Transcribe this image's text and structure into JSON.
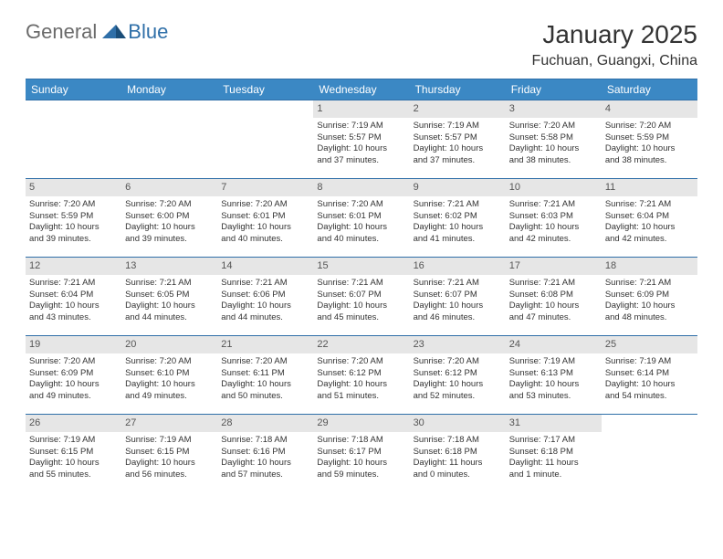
{
  "logo": {
    "part1": "General",
    "part2": "Blue"
  },
  "title": "January 2025",
  "location": "Fuchuan, Guangxi, China",
  "colors": {
    "header_bg": "#3b88c4",
    "header_border": "#2f6fa8",
    "daynum_bg": "#e6e6e6",
    "text": "#333333",
    "logo_gray": "#6b6b6b",
    "logo_blue": "#2f6fa8",
    "page_bg": "#ffffff"
  },
  "typography": {
    "title_fontsize": 28,
    "location_fontsize": 16,
    "weekday_fontsize": 12,
    "daynum_fontsize": 11,
    "cell_fontsize": 9.5
  },
  "weekdays": [
    "Sunday",
    "Monday",
    "Tuesday",
    "Wednesday",
    "Thursday",
    "Friday",
    "Saturday"
  ],
  "weeks": [
    [
      {
        "day": "",
        "lines": []
      },
      {
        "day": "",
        "lines": []
      },
      {
        "day": "",
        "lines": []
      },
      {
        "day": "1",
        "lines": [
          "Sunrise: 7:19 AM",
          "Sunset: 5:57 PM",
          "Daylight: 10 hours",
          "and 37 minutes."
        ]
      },
      {
        "day": "2",
        "lines": [
          "Sunrise: 7:19 AM",
          "Sunset: 5:57 PM",
          "Daylight: 10 hours",
          "and 37 minutes."
        ]
      },
      {
        "day": "3",
        "lines": [
          "Sunrise: 7:20 AM",
          "Sunset: 5:58 PM",
          "Daylight: 10 hours",
          "and 38 minutes."
        ]
      },
      {
        "day": "4",
        "lines": [
          "Sunrise: 7:20 AM",
          "Sunset: 5:59 PM",
          "Daylight: 10 hours",
          "and 38 minutes."
        ]
      }
    ],
    [
      {
        "day": "5",
        "lines": [
          "Sunrise: 7:20 AM",
          "Sunset: 5:59 PM",
          "Daylight: 10 hours",
          "and 39 minutes."
        ]
      },
      {
        "day": "6",
        "lines": [
          "Sunrise: 7:20 AM",
          "Sunset: 6:00 PM",
          "Daylight: 10 hours",
          "and 39 minutes."
        ]
      },
      {
        "day": "7",
        "lines": [
          "Sunrise: 7:20 AM",
          "Sunset: 6:01 PM",
          "Daylight: 10 hours",
          "and 40 minutes."
        ]
      },
      {
        "day": "8",
        "lines": [
          "Sunrise: 7:20 AM",
          "Sunset: 6:01 PM",
          "Daylight: 10 hours",
          "and 40 minutes."
        ]
      },
      {
        "day": "9",
        "lines": [
          "Sunrise: 7:21 AM",
          "Sunset: 6:02 PM",
          "Daylight: 10 hours",
          "and 41 minutes."
        ]
      },
      {
        "day": "10",
        "lines": [
          "Sunrise: 7:21 AM",
          "Sunset: 6:03 PM",
          "Daylight: 10 hours",
          "and 42 minutes."
        ]
      },
      {
        "day": "11",
        "lines": [
          "Sunrise: 7:21 AM",
          "Sunset: 6:04 PM",
          "Daylight: 10 hours",
          "and 42 minutes."
        ]
      }
    ],
    [
      {
        "day": "12",
        "lines": [
          "Sunrise: 7:21 AM",
          "Sunset: 6:04 PM",
          "Daylight: 10 hours",
          "and 43 minutes."
        ]
      },
      {
        "day": "13",
        "lines": [
          "Sunrise: 7:21 AM",
          "Sunset: 6:05 PM",
          "Daylight: 10 hours",
          "and 44 minutes."
        ]
      },
      {
        "day": "14",
        "lines": [
          "Sunrise: 7:21 AM",
          "Sunset: 6:06 PM",
          "Daylight: 10 hours",
          "and 44 minutes."
        ]
      },
      {
        "day": "15",
        "lines": [
          "Sunrise: 7:21 AM",
          "Sunset: 6:07 PM",
          "Daylight: 10 hours",
          "and 45 minutes."
        ]
      },
      {
        "day": "16",
        "lines": [
          "Sunrise: 7:21 AM",
          "Sunset: 6:07 PM",
          "Daylight: 10 hours",
          "and 46 minutes."
        ]
      },
      {
        "day": "17",
        "lines": [
          "Sunrise: 7:21 AM",
          "Sunset: 6:08 PM",
          "Daylight: 10 hours",
          "and 47 minutes."
        ]
      },
      {
        "day": "18",
        "lines": [
          "Sunrise: 7:21 AM",
          "Sunset: 6:09 PM",
          "Daylight: 10 hours",
          "and 48 minutes."
        ]
      }
    ],
    [
      {
        "day": "19",
        "lines": [
          "Sunrise: 7:20 AM",
          "Sunset: 6:09 PM",
          "Daylight: 10 hours",
          "and 49 minutes."
        ]
      },
      {
        "day": "20",
        "lines": [
          "Sunrise: 7:20 AM",
          "Sunset: 6:10 PM",
          "Daylight: 10 hours",
          "and 49 minutes."
        ]
      },
      {
        "day": "21",
        "lines": [
          "Sunrise: 7:20 AM",
          "Sunset: 6:11 PM",
          "Daylight: 10 hours",
          "and 50 minutes."
        ]
      },
      {
        "day": "22",
        "lines": [
          "Sunrise: 7:20 AM",
          "Sunset: 6:12 PM",
          "Daylight: 10 hours",
          "and 51 minutes."
        ]
      },
      {
        "day": "23",
        "lines": [
          "Sunrise: 7:20 AM",
          "Sunset: 6:12 PM",
          "Daylight: 10 hours",
          "and 52 minutes."
        ]
      },
      {
        "day": "24",
        "lines": [
          "Sunrise: 7:19 AM",
          "Sunset: 6:13 PM",
          "Daylight: 10 hours",
          "and 53 minutes."
        ]
      },
      {
        "day": "25",
        "lines": [
          "Sunrise: 7:19 AM",
          "Sunset: 6:14 PM",
          "Daylight: 10 hours",
          "and 54 minutes."
        ]
      }
    ],
    [
      {
        "day": "26",
        "lines": [
          "Sunrise: 7:19 AM",
          "Sunset: 6:15 PM",
          "Daylight: 10 hours",
          "and 55 minutes."
        ]
      },
      {
        "day": "27",
        "lines": [
          "Sunrise: 7:19 AM",
          "Sunset: 6:15 PM",
          "Daylight: 10 hours",
          "and 56 minutes."
        ]
      },
      {
        "day": "28",
        "lines": [
          "Sunrise: 7:18 AM",
          "Sunset: 6:16 PM",
          "Daylight: 10 hours",
          "and 57 minutes."
        ]
      },
      {
        "day": "29",
        "lines": [
          "Sunrise: 7:18 AM",
          "Sunset: 6:17 PM",
          "Daylight: 10 hours",
          "and 59 minutes."
        ]
      },
      {
        "day": "30",
        "lines": [
          "Sunrise: 7:18 AM",
          "Sunset: 6:18 PM",
          "Daylight: 11 hours",
          "and 0 minutes."
        ]
      },
      {
        "day": "31",
        "lines": [
          "Sunrise: 7:17 AM",
          "Sunset: 6:18 PM",
          "Daylight: 11 hours",
          "and 1 minute."
        ]
      },
      {
        "day": "",
        "lines": []
      }
    ]
  ]
}
